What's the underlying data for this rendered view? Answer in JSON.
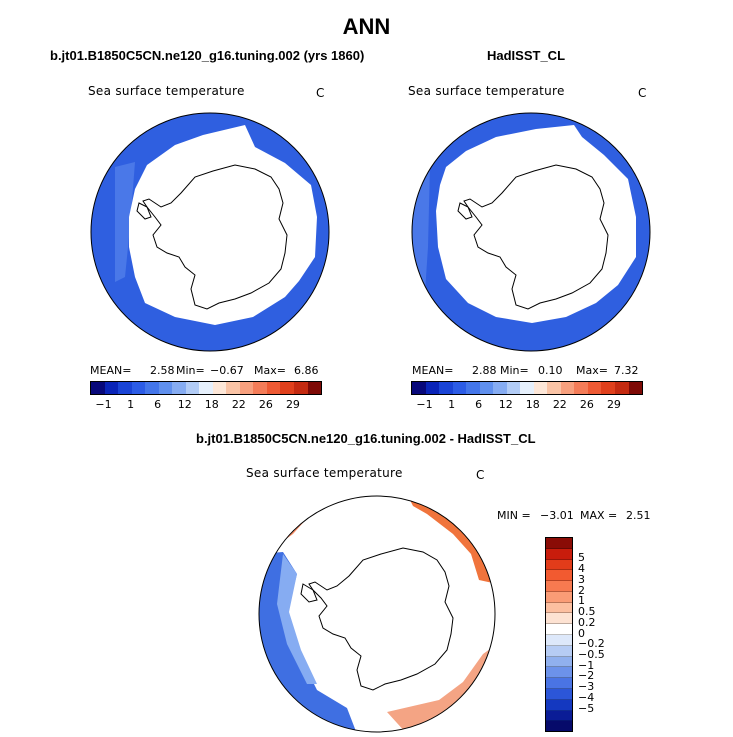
{
  "title": "ANN",
  "panels": {
    "model": {
      "title": "b.jt01.B1850C5CN.ne120_g16.tuning.002 (yrs 1860)",
      "variable": "Sea surface temperature",
      "units": "C",
      "mean_label": "MEAN=",
      "mean": "2.58",
      "min_label": "Min=",
      "min": "−0.67",
      "max_label": "Max=",
      "max": "6.86"
    },
    "obs": {
      "title": "HadISST_CL",
      "variable": "Sea surface temperature",
      "units": "C",
      "mean_label": "MEAN=",
      "mean": "2.88",
      "min_label": "Min=",
      "min": "0.10",
      "max_label": "Max=",
      "max": "7.32"
    },
    "diff": {
      "title": "b.jt01.B1850C5CN.ne120_g16.tuning.002 - HadISST_CL",
      "variable": "Sea surface temperature",
      "units": "C",
      "min_label": "MIN =",
      "min": "−3.01",
      "max_label": "MAX =",
      "max": "2.51"
    }
  },
  "colorbar_top": {
    "colors": [
      "#08087a",
      "#0a24b8",
      "#1a44d6",
      "#2c5ce6",
      "#4476ea",
      "#6090ee",
      "#86acf2",
      "#b2ccf6",
      "#e6f0fc",
      "#fde7d8",
      "#fac4a6",
      "#f7a07e",
      "#f47c58",
      "#ee5a34",
      "#e0401c",
      "#c42a10",
      "#7e0a06"
    ],
    "ticks": [
      "−1",
      "1",
      "6",
      "12",
      "18",
      "22",
      "26",
      "29"
    ]
  },
  "colorbar_diff": {
    "colors": [
      "#8a0c06",
      "#c81c0c",
      "#e23c1a",
      "#f25a30",
      "#f77a50",
      "#fa9c76",
      "#fcbfa0",
      "#fde2d2",
      "#ffffff",
      "#dde8fa",
      "#b6ccf4",
      "#90b0ee",
      "#6c92ea",
      "#4a74e4",
      "#2c56d8",
      "#1438c0",
      "#0a1c96",
      "#060a6a"
    ],
    "labels": [
      "5",
      "4",
      "3",
      "2",
      "1",
      "0.5",
      "0.2",
      "0",
      "−0.2",
      "−0.5",
      "−1",
      "−2",
      "−3",
      "−4",
      "−5"
    ]
  },
  "legend_colors": {
    "ocean_cold_band": "#2f5fe0",
    "ocean_cold_light": "#4a78e8",
    "diff_warm": "#f0743c",
    "diff_cool": "#3f6fe2"
  }
}
